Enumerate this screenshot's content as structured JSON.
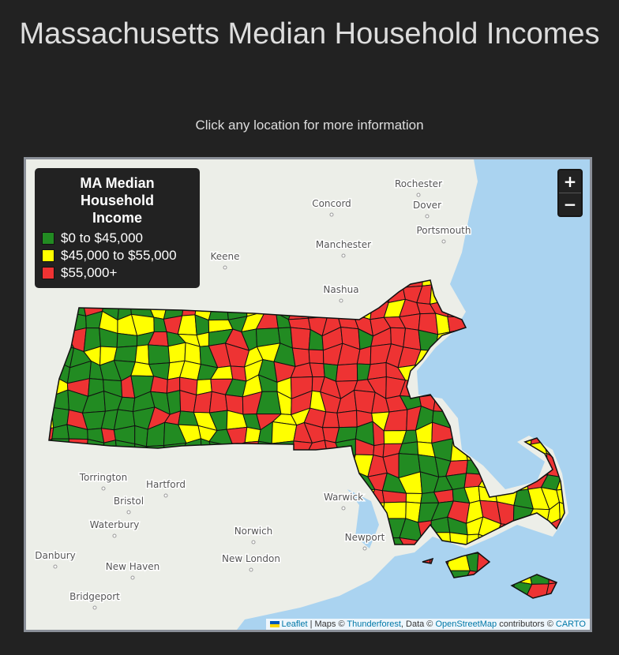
{
  "header": {
    "title": "Massachusetts Median Household Incomes",
    "subtitle": "Click any location for more information"
  },
  "legend": {
    "title": "MA Median Household Income",
    "items": [
      {
        "label": "$0 to $45,000",
        "color": "#228B22"
      },
      {
        "label": "$45,000 to $55,000",
        "color": "#FFFF00"
      },
      {
        "label": "$55,000+",
        "color": "#EE3333"
      }
    ]
  },
  "zoom": {
    "in": "+",
    "out": "−"
  },
  "attribution": [
    {
      "text": "Leaflet",
      "link": true
    },
    {
      "text": " | Maps © ",
      "link": false
    },
    {
      "text": "Thunderforest",
      "link": true
    },
    {
      "text": ", Data © ",
      "link": false
    },
    {
      "text": "OpenStreetMap",
      "link": true
    },
    {
      "text": " contributors © ",
      "link": false
    },
    {
      "text": "CARTO",
      "link": true
    }
  ],
  "place_labels": [
    "Rochester",
    "Dover",
    "Concord",
    "Portsmouth",
    "Manchester",
    "Keene",
    "Nashua",
    "Torrington",
    "Hartford",
    "Bristol",
    "Waterbury",
    "Norwich",
    "Danbury",
    "New London",
    "New Haven",
    "Bridgeport",
    "Warwick",
    "Newport"
  ]
}
